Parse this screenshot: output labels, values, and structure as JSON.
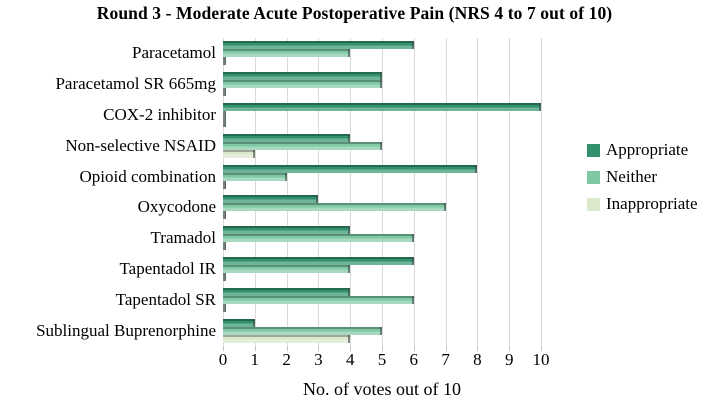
{
  "title": "Round 3 - Moderate Acute Postoperative Pain (NRS 4 to 7 out of 10)",
  "chart_data": {
    "type": "bar",
    "orientation": "horizontal",
    "title": "Round 3 - Moderate Acute Postoperative Pain (NRS 4 to 7 out of 10)",
    "categories": [
      "Paracetamol",
      "Paracetamol SR 665mg",
      "COX-2 inhibitor",
      "Non-selective NSAID",
      "Opioid combination",
      "Oxycodone",
      "Tramadol",
      "Tapentadol IR",
      "Tapentadol SR",
      "Sublingual Buprenorphine"
    ],
    "series": [
      {
        "name": "Appropriate",
        "color": "#31926D",
        "values": [
          6,
          5,
          10,
          4,
          8,
          3,
          4,
          6,
          4,
          1
        ]
      },
      {
        "name": "Neither",
        "color": "#7FC8A4",
        "values": [
          4,
          5,
          0,
          5,
          2,
          7,
          6,
          4,
          6,
          5
        ]
      },
      {
        "name": "Inappropriate",
        "color": "#DAE8CC",
        "values": [
          0,
          0,
          0,
          1,
          0,
          0,
          0,
          0,
          0,
          4
        ]
      }
    ],
    "xlabel": "No. of votes out of 10",
    "xlim": [
      0,
      10
    ],
    "xticks": [
      "0",
      "1",
      "2",
      "3",
      "4",
      "5",
      "6",
      "7",
      "8",
      "9",
      "10"
    ],
    "grid": true,
    "gridline_color": "#d9d9d9",
    "legend_position": "right",
    "legend_labels": [
      "Appropriate",
      "Neither",
      "Inappropriate"
    ]
  }
}
